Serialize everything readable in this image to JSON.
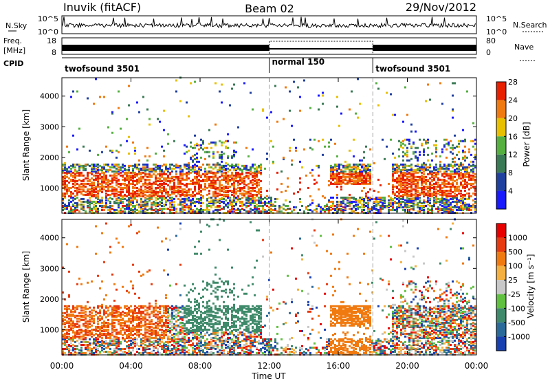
{
  "header": {
    "station": "Inuvik (fitACF)",
    "beam": "Beam 02",
    "date": "29/Nov/2012"
  },
  "top_panels": {
    "nsky_label": "N.Sky",
    "nsky_ticks": [
      "10^5",
      "10^0"
    ],
    "nsearch_label": "N.Search",
    "nsearch_ticks": [
      "10^5",
      "10^0"
    ],
    "freq_label_1": "Freq.",
    "freq_label_2": "[MHz]",
    "freq_ticks": [
      "18",
      "8"
    ],
    "nave_label": "Nave",
    "nave_ticks": [
      "80",
      "0"
    ],
    "cpid_label": "CPID",
    "cpid_segments": [
      {
        "name": "twofsound 3501",
        "start_hour": 0,
        "end_hour": 12
      },
      {
        "name": "normal 150",
        "start_hour": 12,
        "end_hour": 18
      },
      {
        "name": "twofsound 3501",
        "start_hour": 18,
        "end_hour": 24
      }
    ]
  },
  "chart_data": [
    {
      "type": "heatmap",
      "ylabel": "Slant Range [km]",
      "ylim": [
        180,
        4600
      ],
      "yticks": [
        1000,
        2000,
        3000,
        4000
      ],
      "xlim": [
        0,
        24
      ],
      "colorbar_label": "Power [dB]",
      "colorbar_ticks": [
        "4",
        "8",
        "12",
        "16",
        "20",
        "24",
        "28"
      ],
      "colors": [
        "#1a1aff",
        "#2040a0",
        "#3a7a55",
        "#55b040",
        "#e8c000",
        "#f07a10",
        "#e82000"
      ]
    },
    {
      "type": "heatmap",
      "ylabel": "Slant Range [km]",
      "ylim": [
        180,
        4600
      ],
      "yticks": [
        1000,
        2000,
        3000,
        4000
      ],
      "xlim": [
        0,
        24
      ],
      "xlabel": "Time UT",
      "xticks": [
        "00:00",
        "04:00",
        "08:00",
        "12:00",
        "16:00",
        "20:00",
        "00:00"
      ],
      "colorbar_label": "Velocity [m s⁻¹]",
      "colorbar_ticks": [
        "1000",
        "500",
        "100",
        "25",
        "-25",
        "-100",
        "-500",
        "-1000"
      ],
      "colors": [
        "#1840b0",
        "#2a6a9a",
        "#3f8a6a",
        "#60c040",
        "#c8c8c8",
        "#f4b040",
        "#f07a10",
        "#e83a10",
        "#e80000"
      ]
    }
  ]
}
